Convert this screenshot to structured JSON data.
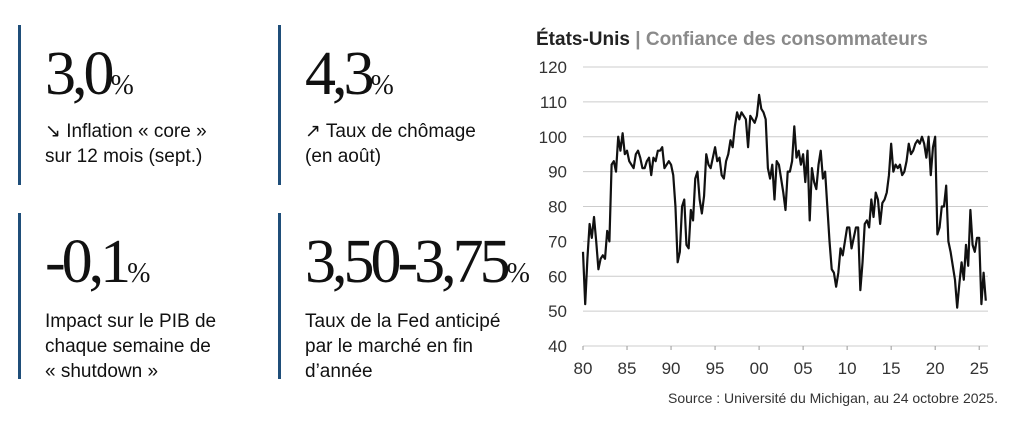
{
  "stats": [
    {
      "figure": "3,0",
      "unit": "%",
      "lines": [
        "↘ Inflation « core »",
        "sur 12 mois (sept.)"
      ]
    },
    {
      "figure": "4,3",
      "unit": "%",
      "lines": [
        "↗ Taux de chômage",
        "(en août)"
      ]
    },
    {
      "figure": "-0,1",
      "unit": "%",
      "lines": [
        "Impact sur le PIB de",
        "chaque semaine de",
        "« shutdown »"
      ]
    },
    {
      "figure": "3,50-3,75",
      "unit": "%",
      "lines": [
        "Taux de la Fed anticipé",
        "par le marché en fin",
        "d’année"
      ]
    }
  ],
  "chart_data": {
    "type": "line",
    "title": "États-Unis",
    "subtitle": "| Confiance des consommateurs",
    "source": "Source : Université du Michigan, au 24 octobre 2025.",
    "x": [
      1980,
      1980.25,
      1980.5,
      1980.75,
      1981,
      1981.25,
      1981.5,
      1981.75,
      1982,
      1982.25,
      1982.5,
      1982.75,
      1983,
      1983.25,
      1983.5,
      1983.75,
      1984,
      1984.25,
      1984.5,
      1984.75,
      1985,
      1985.25,
      1985.5,
      1985.75,
      1986,
      1986.25,
      1986.5,
      1986.75,
      1987,
      1987.25,
      1987.5,
      1987.75,
      1988,
      1988.25,
      1988.5,
      1988.75,
      1989,
      1989.25,
      1989.5,
      1989.75,
      1990,
      1990.25,
      1990.5,
      1990.75,
      1991,
      1991.25,
      1991.5,
      1991.75,
      1992,
      1992.25,
      1992.5,
      1992.75,
      1993,
      1993.25,
      1993.5,
      1993.75,
      1994,
      1994.25,
      1994.5,
      1994.75,
      1995,
      1995.25,
      1995.5,
      1995.75,
      1996,
      1996.25,
      1996.5,
      1996.75,
      1997,
      1997.25,
      1997.5,
      1997.75,
      1998,
      1998.25,
      1998.5,
      1998.75,
      1999,
      1999.25,
      1999.5,
      1999.75,
      2000,
      2000.25,
      2000.5,
      2000.75,
      2001,
      2001.25,
      2001.5,
      2001.75,
      2002,
      2002.25,
      2002.5,
      2002.75,
      2003,
      2003.25,
      2003.5,
      2003.75,
      2004,
      2004.25,
      2004.5,
      2004.75,
      2005,
      2005.25,
      2005.5,
      2005.75,
      2006,
      2006.25,
      2006.5,
      2006.75,
      2007,
      2007.25,
      2007.5,
      2007.75,
      2008,
      2008.25,
      2008.5,
      2008.75,
      2009,
      2009.25,
      2009.5,
      2009.75,
      2010,
      2010.25,
      2010.5,
      2010.75,
      2011,
      2011.25,
      2011.5,
      2011.75,
      2012,
      2012.25,
      2012.5,
      2012.75,
      2013,
      2013.25,
      2013.5,
      2013.75,
      2014,
      2014.25,
      2014.5,
      2014.75,
      2015,
      2015.25,
      2015.5,
      2015.75,
      2016,
      2016.25,
      2016.5,
      2016.75,
      2017,
      2017.25,
      2017.5,
      2017.75,
      2018,
      2018.25,
      2018.5,
      2018.75,
      2019,
      2019.25,
      2019.5,
      2019.75,
      2020,
      2020.25,
      2020.5,
      2020.75,
      2021,
      2021.25,
      2021.5,
      2021.75,
      2022,
      2022.25,
      2022.5,
      2022.75,
      2023,
      2023.25,
      2023.5,
      2023.75,
      2024,
      2024.25,
      2024.5,
      2024.75,
      2025,
      2025.25,
      2025.5,
      2025.75
    ],
    "series": [
      {
        "color": "#111111",
        "values": [
          67,
          52,
          65,
          75,
          71,
          77,
          70,
          62,
          65,
          66,
          65,
          73,
          70,
          92,
          93,
          90,
          100,
          96,
          101,
          95,
          96,
          93,
          92,
          91,
          95,
          96,
          94,
          91,
          91,
          93,
          94,
          89,
          94,
          93,
          96,
          96,
          97,
          91,
          92,
          93,
          92,
          89,
          80,
          64,
          67,
          80,
          82,
          69,
          68,
          79,
          76,
          88,
          90,
          82,
          78,
          83,
          95,
          92,
          91,
          94,
          97,
          93,
          94,
          89,
          88,
          93,
          95,
          99,
          97,
          103,
          107,
          105,
          107,
          106,
          105,
          97,
          106,
          105,
          104,
          106,
          112,
          108,
          107,
          105,
          91,
          88,
          92,
          82,
          93,
          92,
          88,
          84,
          79,
          90,
          90,
          93,
          103,
          94,
          96,
          92,
          95,
          87,
          96,
          76,
          91,
          87,
          85,
          92,
          96,
          88,
          90,
          80,
          70,
          62,
          61,
          57,
          61,
          68,
          66,
          70,
          74,
          74,
          68,
          71,
          74,
          74,
          56,
          64,
          75,
          76,
          74,
          82,
          77,
          84,
          82,
          75,
          81,
          82,
          84,
          89,
          98,
          90,
          92,
          91,
          92,
          89,
          90,
          93,
          98,
          95,
          96,
          98,
          99,
          98,
          100,
          98,
          94,
          100,
          89,
          97,
          100,
          72,
          74,
          80,
          80,
          86,
          70,
          67,
          63,
          59,
          51,
          58,
          64,
          59,
          69,
          63,
          79,
          69,
          67,
          71,
          71,
          52,
          61,
          53
        ]
      }
    ],
    "xlim": [
      1980,
      2026
    ],
    "xticks": [
      {
        "value": 1980,
        "label": "80"
      },
      {
        "value": 1985,
        "label": "85"
      },
      {
        "value": 1990,
        "label": "90"
      },
      {
        "value": 1995,
        "label": "95"
      },
      {
        "value": 2000,
        "label": "00"
      },
      {
        "value": 2005,
        "label": "05"
      },
      {
        "value": 2010,
        "label": "10"
      },
      {
        "value": 2015,
        "label": "15"
      },
      {
        "value": 2020,
        "label": "20"
      },
      {
        "value": 2025,
        "label": "25"
      }
    ],
    "ylim": [
      40,
      120
    ],
    "yticks": [
      40,
      50,
      60,
      70,
      80,
      90,
      100,
      110,
      120
    ],
    "grid": true
  }
}
